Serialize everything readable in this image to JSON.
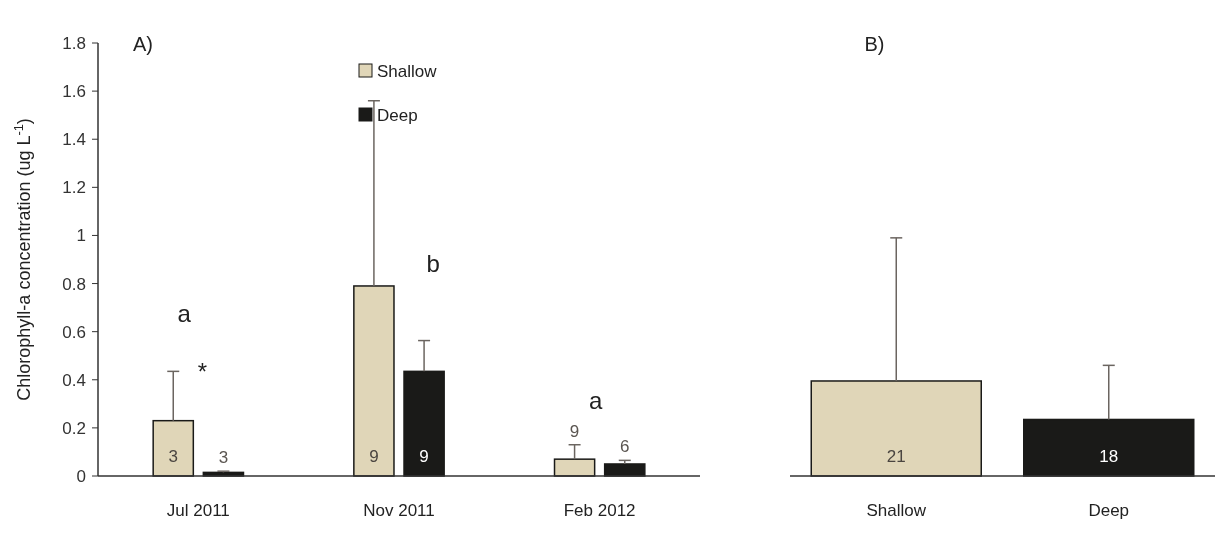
{
  "chart_data": [
    {
      "type": "bar",
      "title": "A)",
      "ylabel": "Chlorophyll-a concentration (ug L$^{-1}$)",
      "categories": [
        "Jul 2011",
        "Nov 2011",
        "Feb 2012"
      ],
      "ylim": [
        0,
        1.8
      ],
      "yticks": [
        0,
        0.2,
        0.4,
        0.6,
        0.8,
        1,
        1.2,
        1.4,
        1.6,
        1.8
      ],
      "grid": false,
      "legend": "top",
      "series": [
        {
          "name": "Shallow",
          "color": "#e0d6b8",
          "values": [
            0.23,
            0.79,
            0.07
          ],
          "errors": [
            [
              0.23,
              0.435
            ],
            [
              0.79,
              1.56
            ],
            [
              0.07,
              0.13
            ]
          ]
        },
        {
          "name": "Deep",
          "color": "#1a1a18",
          "values": [
            0.015,
            0.435,
            0.05
          ],
          "errors": [
            [
              0.015,
              0.02
            ],
            [
              0.435,
              0.563
            ],
            [
              0.05,
              0.065
            ]
          ]
        }
      ],
      "annotations": [
        "a",
        "*",
        "b",
        "a",
        "3",
        "9",
        "9",
        "3",
        "9",
        "6"
      ]
    },
    {
      "type": "bar",
      "title": "B)",
      "categories": [
        "Shallow",
        "Deep"
      ],
      "ylim": [
        0,
        1.8
      ],
      "tick_labels": "x",
      "grid": false,
      "values": [
        0.395,
        0.235
      ],
      "colors": [
        "#e0d6b8",
        "#1a1a18"
      ],
      "errors": [
        [
          0.395,
          0.99
        ],
        [
          0.235,
          0.46
        ]
      ],
      "annotations": [
        "21",
        "18"
      ]
    }
  ]
}
